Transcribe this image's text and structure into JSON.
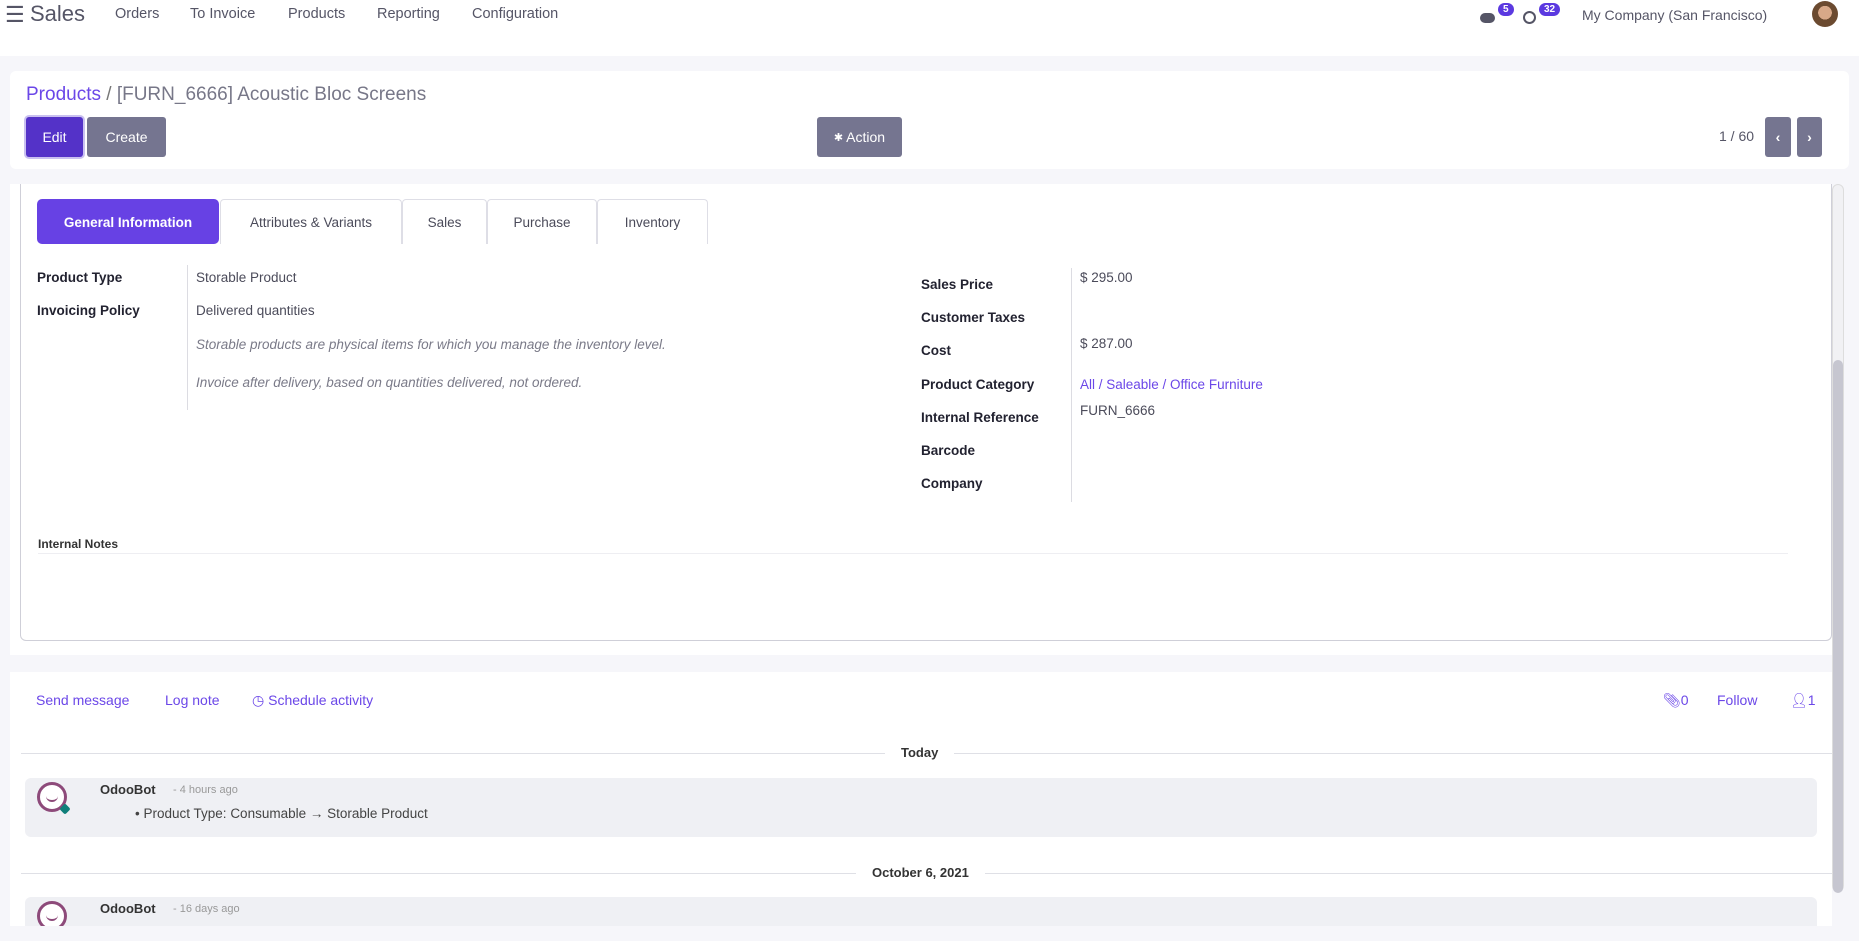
{
  "navbar": {
    "app_name": "Sales",
    "menu": [
      "Orders",
      "To Invoice",
      "Products",
      "Reporting",
      "Configuration"
    ],
    "messages_count": "5",
    "activities_count": "32",
    "company": "My Company (San Francisco)"
  },
  "breadcrumb": {
    "parent": "Products",
    "separator": "/",
    "current": "[FURN_6666] Acoustic Bloc Screens"
  },
  "toolbar": {
    "edit": "Edit",
    "create": "Create",
    "action": "Action",
    "pager": "1 / 60"
  },
  "tabs": [
    "General Information",
    "Attributes & Variants",
    "Sales",
    "Purchase",
    "Inventory"
  ],
  "active_tab": "General Information",
  "left_fields": [
    {
      "label": "Product Type",
      "value": "Storable Product"
    },
    {
      "label": "Invoicing Policy",
      "value": "Delivered quantities"
    }
  ],
  "help_texts": [
    "Storable products are physical items for which you manage the inventory level.",
    "Invoice after delivery, based on quantities delivered, not ordered."
  ],
  "right_fields": [
    {
      "label": "Sales Price",
      "value": "$ 295.00"
    },
    {
      "label": "Customer Taxes",
      "value": ""
    },
    {
      "label": "Cost",
      "value": "$ 287.00"
    },
    {
      "label": "Product Category",
      "value": "All / Saleable / Office Furniture"
    },
    {
      "label": "Internal Reference",
      "value": "FURN_6666"
    },
    {
      "label": "Barcode",
      "value": ""
    },
    {
      "label": "Company",
      "value": ""
    }
  ],
  "internal_notes_label": "Internal Notes",
  "chatter": {
    "send_message": "Send message",
    "log_note": "Log note",
    "schedule_activity": "Schedule activity",
    "attachments": "0",
    "follow": "Follow",
    "followers": "1",
    "groups": [
      {
        "date": "Today",
        "author": "OdooBot",
        "time": "- 4 hours ago",
        "change_field": "Product Type:",
        "old": "Consumable",
        "arrow": "→",
        "new": "Storable Product"
      },
      {
        "date": "October 6, 2021",
        "author": "OdooBot",
        "time": "- 16 days ago"
      }
    ]
  },
  "colors": {
    "accent": "#6741e4",
    "edit_button": "#5432c8",
    "secondary_button": "#757590",
    "link": "#6b47e8"
  }
}
